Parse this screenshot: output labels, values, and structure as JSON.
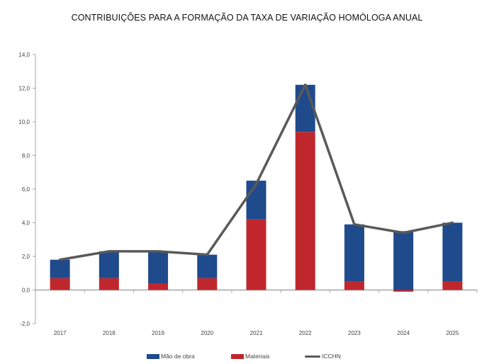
{
  "chart_data": {
    "type": "bar",
    "stacked": true,
    "title": "CONTRIBUIÇÕES PARA A FORMAÇÃO DA TAXA DE VARIAÇÃO HOMÓLOGA ANUAL",
    "xlabel": "",
    "ylabel": "",
    "ylim": [
      -2.0,
      14.0
    ],
    "yticks": [
      "-2,0",
      "0,0",
      "2,0",
      "4,0",
      "6,0",
      "8,0",
      "10,0",
      "12,0",
      "14,0"
    ],
    "ytick_values": [
      -2,
      0,
      2,
      4,
      6,
      8,
      10,
      12,
      14
    ],
    "categories": [
      "2017",
      "2018",
      "2019",
      "2020",
      "2021",
      "2022",
      "2023",
      "2024",
      "2025"
    ],
    "series": [
      {
        "name": "Materiais",
        "kind": "bar",
        "color": "#c0272d",
        "values": [
          0.7,
          0.7,
          0.4,
          0.7,
          4.2,
          9.4,
          0.5,
          -0.1,
          0.5
        ]
      },
      {
        "name": "Mão de obra",
        "kind": "bar",
        "color": "#1f4a8c",
        "values": [
          1.1,
          1.6,
          1.9,
          1.4,
          2.3,
          2.8,
          3.4,
          3.5,
          3.5
        ]
      },
      {
        "name": "ICCHN",
        "kind": "line",
        "color": "#595959",
        "values": [
          1.8,
          2.3,
          2.3,
          2.1,
          6.3,
          12.2,
          3.9,
          3.4,
          4.0
        ]
      }
    ],
    "grid": false,
    "legend": "bottom",
    "legend_order": [
      "Mão de obra",
      "Materiais",
      "ICCHN"
    ]
  }
}
